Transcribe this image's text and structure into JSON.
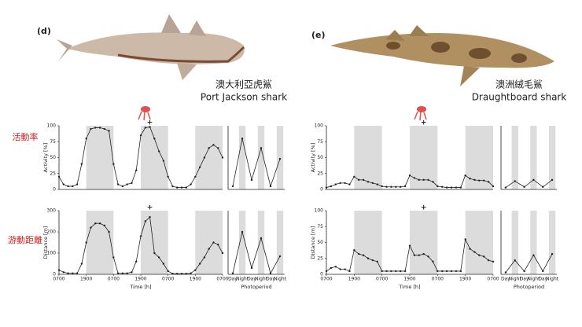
{
  "panels": [
    {
      "label": "(d)",
      "name_zh": "澳大利亞虎鯊",
      "name_en": "Port Jackson shark"
    },
    {
      "label": "(e)",
      "name_zh": "澳洲絨毛鯊",
      "name_en": "Draughtboard shark"
    }
  ],
  "row_labels": [
    "活動率",
    "游動距離"
  ],
  "chart_data": [
    {
      "type": "line",
      "ylabel": "Activity [%]",
      "color": "#222222",
      "x": [
        0,
        2,
        4,
        6,
        8,
        10,
        12,
        14,
        16,
        18,
        20,
        22,
        24,
        26,
        28,
        30,
        32,
        34,
        36,
        38,
        40,
        42,
        44,
        46,
        48,
        50,
        52,
        54,
        56,
        58,
        60,
        62,
        64,
        66,
        68,
        70,
        72
      ],
      "values": [
        20,
        8,
        5,
        5,
        8,
        40,
        80,
        95,
        97,
        97,
        95,
        92,
        40,
        8,
        5,
        8,
        10,
        30,
        85,
        97,
        98,
        80,
        60,
        45,
        20,
        5,
        3,
        3,
        3,
        8,
        20,
        35,
        50,
        65,
        70,
        65,
        50
      ],
      "xlim": [
        0,
        72
      ],
      "ylim": [
        0,
        100
      ],
      "yticks": [
        0,
        25,
        50,
        75,
        100
      ],
      "shade": [
        [
          12,
          24
        ],
        [
          36,
          48
        ],
        [
          60,
          72
        ]
      ],
      "annotation": {
        "text": "+",
        "x": 40
      }
    },
    {
      "type": "line",
      "color": "#222222",
      "categories": [
        null,
        null,
        null,
        null,
        null,
        null
      ],
      "values": [
        5,
        80,
        15,
        65,
        5,
        48
      ],
      "ylim": [
        0,
        100
      ]
    },
    {
      "type": "line",
      "ylabel": "Distance [m]",
      "xlabel": "Time [h]",
      "color": "#222222",
      "x": [
        0,
        2,
        4,
        6,
        8,
        10,
        12,
        14,
        16,
        18,
        20,
        22,
        24,
        26,
        28,
        30,
        32,
        34,
        36,
        38,
        40,
        42,
        44,
        46,
        48,
        50,
        52,
        54,
        56,
        58,
        60,
        62,
        64,
        66,
        68,
        70,
        72
      ],
      "values": [
        20,
        10,
        5,
        5,
        5,
        50,
        150,
        220,
        240,
        240,
        230,
        200,
        80,
        5,
        5,
        5,
        10,
        60,
        180,
        250,
        270,
        100,
        80,
        50,
        15,
        3,
        3,
        3,
        3,
        5,
        20,
        50,
        80,
        120,
        150,
        140,
        100
      ],
      "xlim": [
        0,
        72
      ],
      "ylim": [
        0,
        300
      ],
      "yticks": [
        0,
        100,
        200,
        300
      ],
      "xticks": [
        {
          "value": 0,
          "label": "0700"
        },
        {
          "value": 12,
          "label": "1900"
        },
        {
          "value": 24,
          "label": "0700"
        },
        {
          "value": 36,
          "label": "1900"
        },
        {
          "value": 48,
          "label": "0700"
        },
        {
          "value": 60,
          "label": "1900"
        },
        {
          "value": 72,
          "label": "0700"
        }
      ],
      "shade": [
        [
          12,
          24
        ],
        [
          36,
          48
        ],
        [
          60,
          72
        ]
      ],
      "annotation": {
        "text": "+",
        "x": 40
      }
    },
    {
      "type": "line",
      "xlabel": "Photoperiod",
      "color": "#222222",
      "categories": [
        "Day",
        "Night",
        "Day",
        "Night",
        "Day",
        "Night"
      ],
      "values": [
        5,
        200,
        30,
        170,
        5,
        85
      ],
      "ylim": [
        0,
        300
      ]
    },
    {
      "type": "line",
      "ylabel": "Activity [%]",
      "color": "#222222",
      "x": [
        0,
        2,
        4,
        6,
        8,
        10,
        12,
        14,
        16,
        18,
        20,
        22,
        24,
        26,
        28,
        30,
        32,
        34,
        36,
        38,
        40,
        42,
        44,
        46,
        48,
        50,
        52,
        54,
        56,
        58,
        60,
        62,
        64,
        66,
        68,
        70,
        72
      ],
      "values": [
        3,
        5,
        8,
        10,
        10,
        8,
        20,
        15,
        15,
        12,
        10,
        8,
        5,
        4,
        4,
        4,
        4,
        5,
        22,
        18,
        15,
        15,
        15,
        12,
        5,
        4,
        3,
        3,
        3,
        3,
        22,
        17,
        15,
        14,
        14,
        12,
        5
      ],
      "xlim": [
        0,
        72
      ],
      "ylim": [
        0,
        100
      ],
      "yticks": [
        0,
        25,
        50,
        75,
        100
      ],
      "shade": [
        [
          12,
          24
        ],
        [
          36,
          48
        ],
        [
          60,
          72
        ]
      ],
      "annotation": {
        "text": "+",
        "x": 42
      }
    },
    {
      "type": "line",
      "color": "#222222",
      "categories": [
        null,
        null,
        null,
        null,
        null,
        null
      ],
      "values": [
        3,
        13,
        4,
        15,
        4,
        15
      ],
      "ylim": [
        0,
        100
      ]
    },
    {
      "type": "line",
      "ylabel": "Distance [m]",
      "xlabel": "Time [h]",
      "color": "#222222",
      "x": [
        0,
        2,
        4,
        6,
        8,
        10,
        12,
        14,
        16,
        18,
        20,
        22,
        24,
        26,
        28,
        30,
        32,
        34,
        36,
        38,
        40,
        42,
        44,
        46,
        48,
        50,
        52,
        54,
        56,
        58,
        60,
        62,
        64,
        66,
        68,
        70,
        72
      ],
      "values": [
        5,
        10,
        12,
        8,
        8,
        5,
        38,
        32,
        30,
        25,
        22,
        20,
        5,
        5,
        5,
        5,
        5,
        5,
        45,
        30,
        30,
        32,
        28,
        20,
        5,
        5,
        5,
        5,
        5,
        5,
        55,
        40,
        35,
        30,
        28,
        22,
        20
      ],
      "xlim": [
        0,
        72
      ],
      "ylim": [
        0,
        100
      ],
      "yticks": [
        0,
        25,
        50,
        75,
        100
      ],
      "xticks": [
        {
          "value": 0,
          "label": "0700"
        },
        {
          "value": 12,
          "label": "1900"
        },
        {
          "value": 24,
          "label": "0700"
        },
        {
          "value": 36,
          "label": "1900"
        },
        {
          "value": 48,
          "label": "0700"
        },
        {
          "value": 60,
          "label": "1900"
        },
        {
          "value": 72,
          "label": "0700"
        }
      ],
      "shade": [
        [
          12,
          24
        ],
        [
          36,
          48
        ],
        [
          60,
          72
        ]
      ],
      "annotation": {
        "text": "+",
        "x": 42
      }
    },
    {
      "type": "line",
      "xlabel": "Photoperiod",
      "color": "#222222",
      "categories": [
        "Day",
        "Night",
        "Day",
        "Night",
        "Day",
        "Night"
      ],
      "values": [
        3,
        22,
        5,
        30,
        5,
        32
      ],
      "ylim": [
        0,
        100
      ]
    }
  ]
}
